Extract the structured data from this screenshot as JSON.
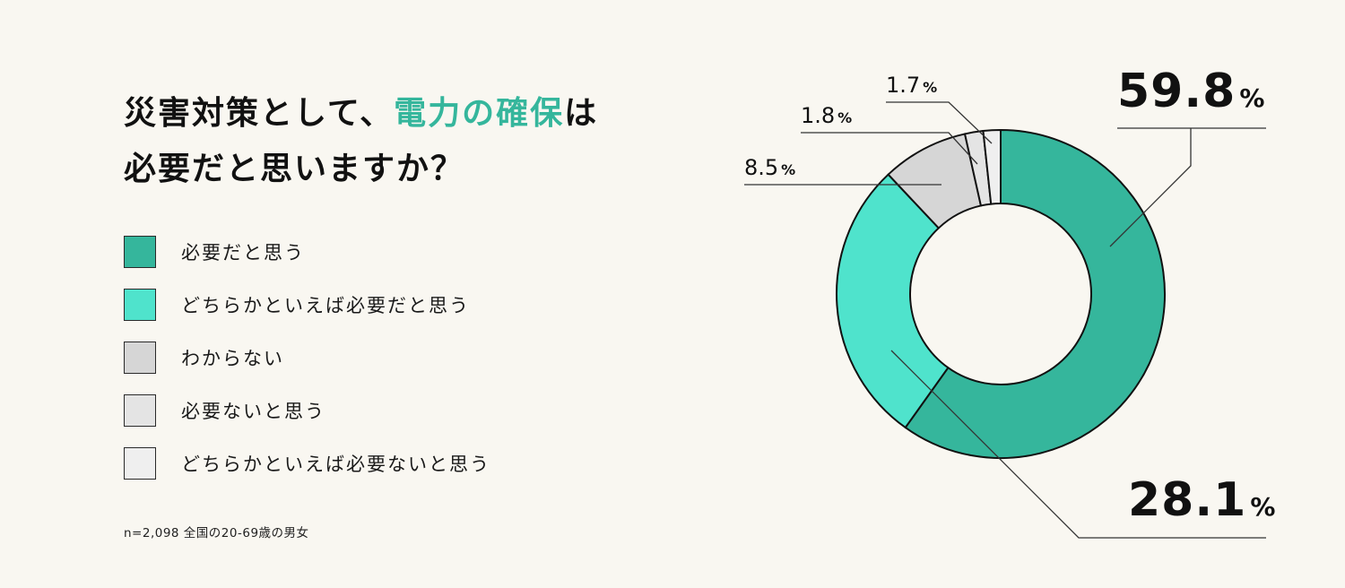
{
  "title": {
    "line1_prefix": "災害対策として、",
    "line1_accent": "電力の確保",
    "line1_suffix": "は",
    "line2": "必要だと思いますか？",
    "accent_color": "#35b69c"
  },
  "legend": [
    {
      "label": "必要だと思う",
      "color": "#35b69c"
    },
    {
      "label": "どちらかといえば必要だと思う",
      "color": "#4fe3cc"
    },
    {
      "label": "わからない",
      "color": "#d6d6d6"
    },
    {
      "label": "必要ないと思う",
      "color": "#e4e4e4"
    },
    {
      "label": "どちらかといえば必要ないと思う",
      "color": "#efefef"
    }
  ],
  "note": "n=2,098  全国の20-69歳の男女",
  "labels": {
    "s1": {
      "num": "59.8",
      "unit": "%"
    },
    "s2": {
      "num": "28.1",
      "unit": "%"
    },
    "s3": {
      "num": "8.5",
      "unit": "%"
    },
    "s4": {
      "num": "1.8",
      "unit": "%"
    },
    "s5": {
      "num": "1.7",
      "unit": "%"
    }
  },
  "chart_data": {
    "type": "pie",
    "subtype": "donut",
    "title": "災害対策として、電力の確保は必要だと思いますか？",
    "categories": [
      "必要だと思う",
      "どちらかといえば必要だと思う",
      "わからない",
      "必要ないと思う",
      "どちらかといえば必要ないと思う"
    ],
    "values": [
      59.8,
      28.1,
      8.5,
      1.8,
      1.7
    ],
    "unit": "%",
    "colors": [
      "#35b69c",
      "#4fe3cc",
      "#d6d6d6",
      "#e4e4e4",
      "#efefef"
    ],
    "start_angle": "12 o'clock, clockwise",
    "legend_position": "left",
    "sample_note": "n=2,098  全国の20-69歳の男女"
  }
}
